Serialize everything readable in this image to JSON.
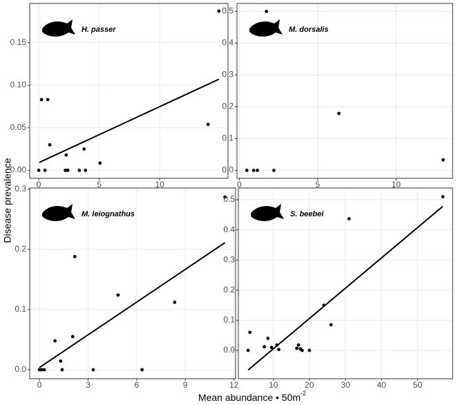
{
  "y_label": "Disease prevalence",
  "x_label": {
    "text": "Mean abundance • 50m",
    "superscript": "-2"
  },
  "chart_data": [
    {
      "type": "scatter",
      "title": "H. passer",
      "color": "#000000",
      "grid": true,
      "x": [
        0,
        0.23,
        0.51,
        0.74,
        0.91,
        2.27,
        2.2,
        2.3,
        2.4,
        3.35,
        3.75,
        3.86,
        5.06,
        14.0,
        14.9
      ],
      "values": [
        0,
        0.083,
        0,
        0.083,
        0.03,
        0.018,
        0,
        0,
        0,
        0,
        0.025,
        0,
        0.0085,
        0.054,
        0.187
      ],
      "fit": {
        "x": [
          0.05,
          14.9
        ],
        "y": [
          0.0093,
          0.107
        ]
      },
      "xlim": [
        -0.75,
        15.65
      ],
      "ylim": [
        -0.0094,
        0.196
      ],
      "xticks": [
        0,
        5,
        10
      ],
      "yticks": [
        {
          "value": 0,
          "label": "0.00"
        },
        0.05,
        {
          "value": 0.1,
          "label": "0.10"
        },
        0.15
      ]
    },
    {
      "type": "scatter",
      "title": "M. dorsalis",
      "color": "#000000",
      "grid": true,
      "x": [
        0.48,
        0.91,
        1.15,
        2.2,
        1.73,
        6.35,
        13.0
      ],
      "values": [
        0,
        0,
        0,
        0,
        0.5,
        0.179,
        0.033
      ],
      "xlim": [
        -0.15,
        13.6
      ],
      "ylim": [
        -0.025,
        0.525
      ],
      "xticks": [
        0,
        5,
        10
      ],
      "yticks": [
        {
          "value": 0,
          "label": "0.0"
        },
        0.1,
        0.2,
        0.3,
        0.4,
        0.5
      ]
    },
    {
      "type": "scatter",
      "title": "M. leiognathus",
      "color": "#000000",
      "grid": true,
      "x": [
        0,
        0.13,
        0.3,
        0.96,
        1.31,
        1.4,
        2.05,
        2.18,
        3.32,
        4.85,
        6.33,
        8.34,
        11.44
      ],
      "values": [
        0,
        0,
        0,
        0.048,
        0.0144,
        0,
        0.055,
        0.188,
        0,
        0.124,
        0,
        0.112,
        0.287
      ],
      "fit": {
        "x": [
          0,
          11.44
        ],
        "y": [
          0.0036,
          0.211
        ]
      },
      "xlim": [
        -0.6,
        12.1
      ],
      "ylim": [
        -0.015,
        0.302
      ],
      "xticks": [
        0,
        3,
        6,
        9,
        12
      ],
      "yticks": [
        {
          "value": 0,
          "label": "0.0"
        },
        0.1,
        0.2,
        0.3
      ]
    },
    {
      "type": "scatter",
      "title": "S. beebei",
      "color": "#000000",
      "grid": true,
      "x": [
        3,
        3.5,
        7.5,
        8.5,
        9.5,
        11,
        11.5,
        16.5,
        17,
        17.5,
        18,
        20,
        24,
        26,
        31,
        57
      ],
      "values": [
        0,
        0.06,
        0.012,
        0.04,
        0.01,
        0.018,
        0.003,
        0.007,
        0.018,
        0.005,
        0,
        0,
        0.15,
        0.085,
        0.437,
        0.51
      ],
      "fit": {
        "x": [
          3,
          57
        ],
        "y": [
          -0.065,
          0.478
        ]
      },
      "xlim": [
        0.3,
        59.7
      ],
      "ylim": [
        -0.094,
        0.539
      ],
      "xticks": [
        10,
        20,
        30,
        40,
        50
      ],
      "yticks": [
        {
          "value": 0,
          "label": "0.0"
        },
        0.1,
        0.2,
        0.3,
        0.4,
        0.5
      ]
    }
  ]
}
